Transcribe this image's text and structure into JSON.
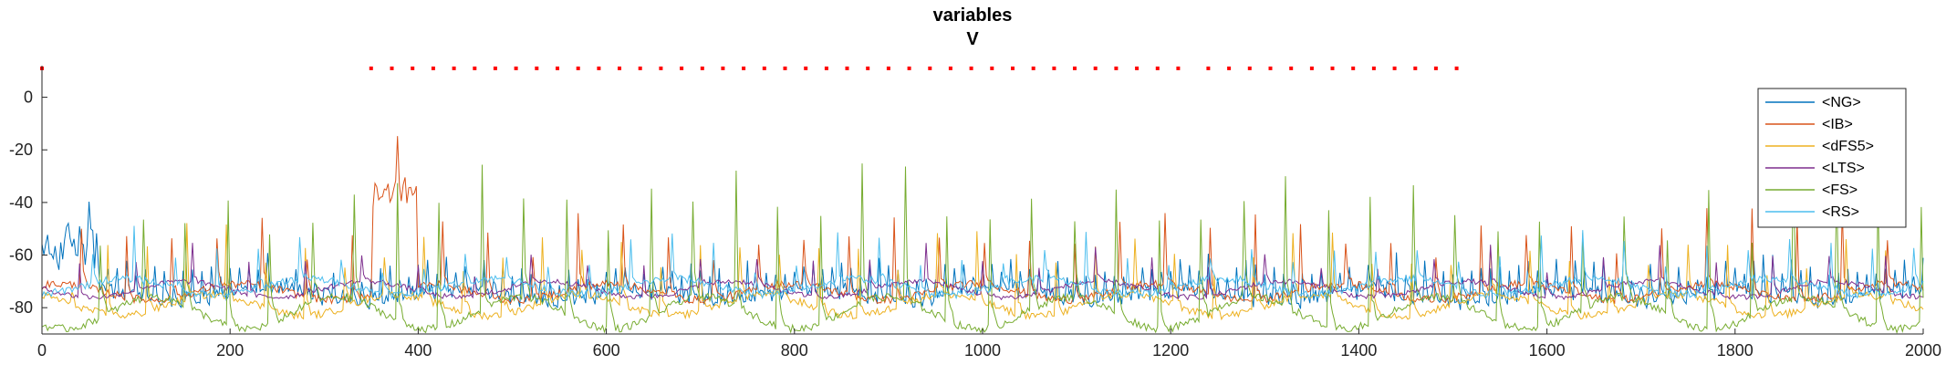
{
  "chart_data": {
    "type": "line",
    "title": "variables",
    "subtitle": "V",
    "xlabel": "",
    "ylabel": "",
    "xlim": [
      0,
      2000
    ],
    "ylim": [
      -90,
      12
    ],
    "xticks": [
      0,
      200,
      400,
      600,
      800,
      1000,
      1200,
      1400,
      1600,
      1800,
      2000
    ],
    "yticks": [
      0,
      -20,
      -40,
      -60,
      -80
    ],
    "grid": false,
    "legend_position": "top-right",
    "spike_raster": {
      "color": "#ff0000",
      "y": 11,
      "x": [
        0,
        350,
        372,
        394,
        416,
        438,
        460,
        482,
        504,
        526,
        548,
        570,
        592,
        614,
        636,
        658,
        680,
        702,
        724,
        746,
        768,
        790,
        812,
        834,
        856,
        878,
        900,
        922,
        944,
        966,
        988,
        1010,
        1032,
        1054,
        1076,
        1098,
        1120,
        1142,
        1164,
        1186,
        1208,
        1240,
        1262,
        1284,
        1306,
        1328,
        1350,
        1372,
        1394,
        1416,
        1438,
        1460,
        1482,
        1504
      ]
    },
    "series": [
      {
        "name": "<NG>",
        "color": "#0072BD"
      },
      {
        "name": "<IB>",
        "color": "#D95319"
      },
      {
        "name": "<dFS5>",
        "color": "#EDB120"
      },
      {
        "name": "<LTS>",
        "color": "#7E2F8E"
      },
      {
        "name": "<FS>",
        "color": "#77AC30"
      },
      {
        "name": "<RS>",
        "color": "#4DBEEE"
      }
    ]
  }
}
